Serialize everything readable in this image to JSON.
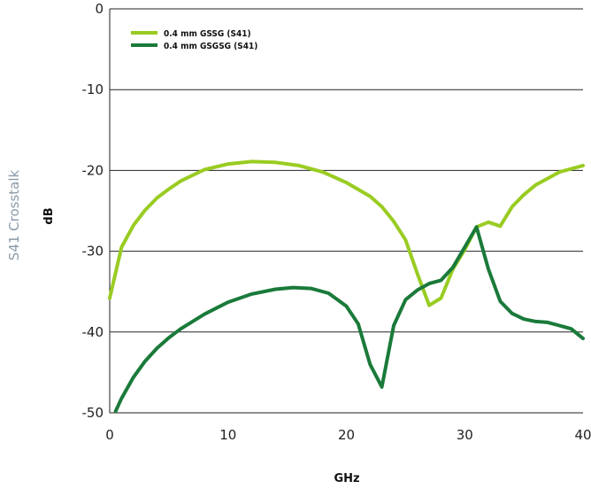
{
  "chart_data": {
    "type": "line",
    "xlabel": "GHz",
    "ylabel": "dB",
    "side_title": "S41 Crosstalk",
    "xlim": [
      0,
      40
    ],
    "ylim": [
      -50,
      0
    ],
    "x_ticks": [
      "0",
      "10",
      "20",
      "30",
      "40"
    ],
    "y_ticks": [
      "0",
      "-10",
      "-20",
      "-30",
      "-40",
      "-50"
    ],
    "grid": "horizontal",
    "legend_position": "top-left",
    "series": [
      {
        "name": "0.4 mm GSSG (S41)",
        "color": "#99cc22",
        "x": [
          0,
          1,
          2,
          3,
          4,
          5,
          6,
          8,
          10,
          12,
          14,
          16,
          18,
          20,
          22,
          23,
          24,
          25,
          26,
          27,
          28,
          29,
          30,
          31,
          32,
          33,
          34,
          35,
          36,
          38,
          40
        ],
        "y": [
          -35.8,
          -29.5,
          -26.8,
          -24.9,
          -23.4,
          -22.3,
          -21.3,
          -19.9,
          -19.2,
          -18.9,
          -19.0,
          -19.4,
          -20.2,
          -21.5,
          -23.2,
          -24.5,
          -26.3,
          -28.6,
          -32.8,
          -36.7,
          -35.8,
          -32.2,
          -29.8,
          -27.0,
          -26.4,
          -26.9,
          -24.5,
          -23.0,
          -21.8,
          -20.2,
          -19.4
        ]
      },
      {
        "name": "0.4 mm GSGSG (S41)",
        "color": "#1a7a3a",
        "x": [
          0.5,
          1,
          2,
          3,
          4,
          5,
          6,
          8,
          10,
          12,
          14,
          15.5,
          17,
          18.5,
          20,
          21,
          22,
          23,
          24,
          25,
          26,
          27,
          28,
          29,
          30,
          31,
          32,
          33,
          34,
          35,
          36,
          37,
          38,
          39,
          40
        ],
        "y": [
          -49.8,
          -48.2,
          -45.6,
          -43.6,
          -42.0,
          -40.7,
          -39.6,
          -37.8,
          -36.3,
          -35.3,
          -34.7,
          -34.5,
          -34.6,
          -35.2,
          -36.8,
          -39.0,
          -44.0,
          -46.8,
          -39.2,
          -36.0,
          -34.8,
          -34.0,
          -33.6,
          -32.0,
          -29.5,
          -27.0,
          -32.2,
          -36.2,
          -37.7,
          -38.4,
          -38.7,
          -38.8,
          -39.2,
          -39.6,
          -40.8
        ]
      }
    ]
  }
}
